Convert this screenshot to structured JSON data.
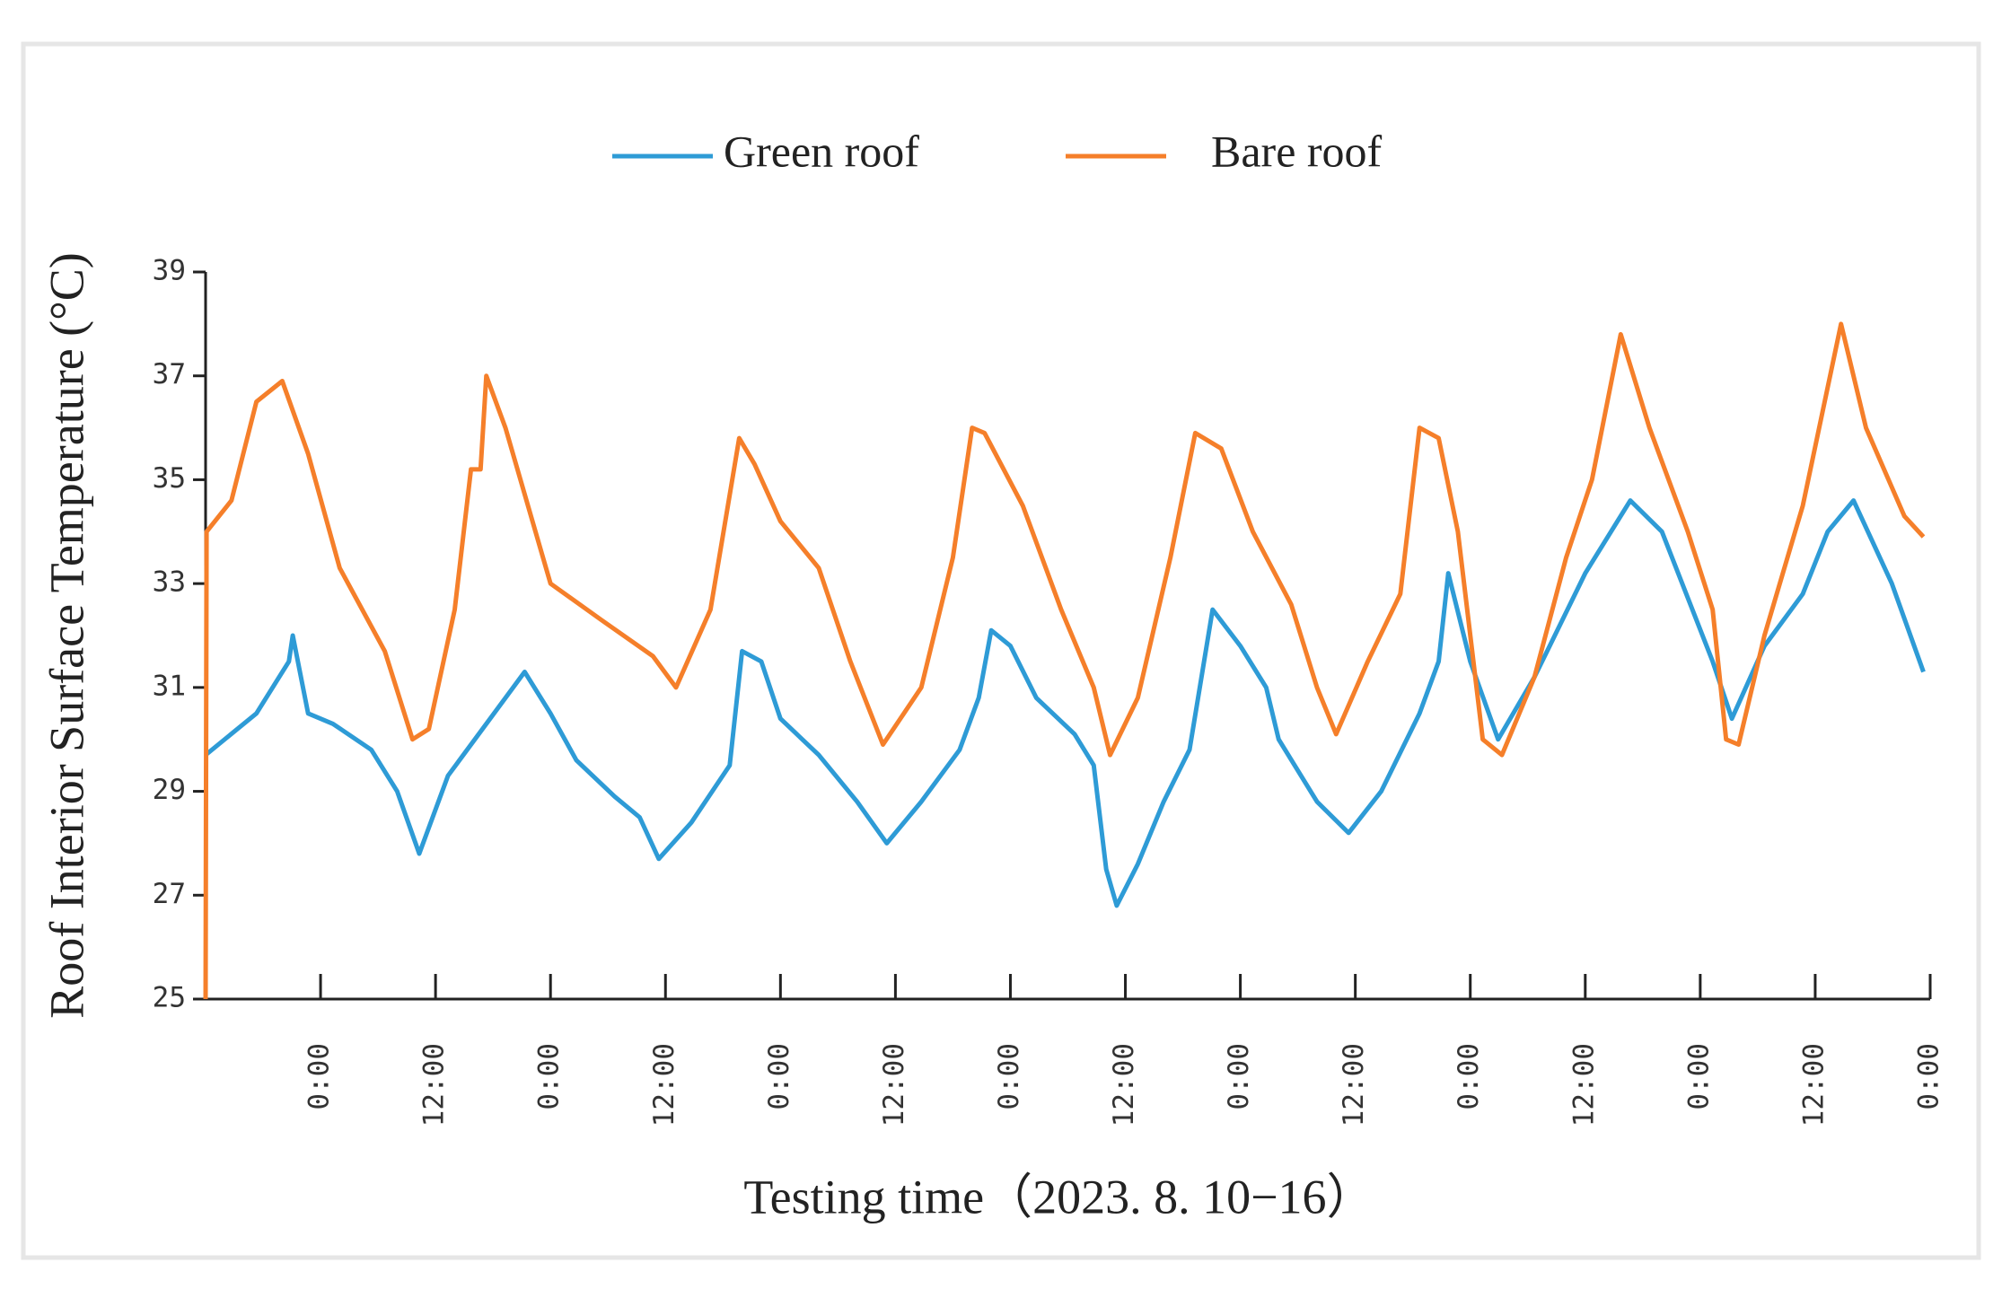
{
  "chart_data": {
    "type": "line",
    "xlabel": "Testing time（2023. 8. 10−16）",
    "ylabel": "Roof Interior Surface Temperature (°C)",
    "xlim": [
      0,
      180
    ],
    "xticks": [
      {
        "value": 12,
        "label": "0:00"
      },
      {
        "value": 24,
        "label": "12:00"
      },
      {
        "value": 36,
        "label": "0:00"
      },
      {
        "value": 48,
        "label": "12:00"
      },
      {
        "value": 60,
        "label": "0:00"
      },
      {
        "value": 72,
        "label": "12:00"
      },
      {
        "value": 84,
        "label": "0:00"
      },
      {
        "value": 96,
        "label": "12:00"
      },
      {
        "value": 108,
        "label": "0:00"
      },
      {
        "value": 120,
        "label": "12:00"
      },
      {
        "value": 132,
        "label": "0:00"
      },
      {
        "value": 144,
        "label": "12:00"
      },
      {
        "value": 156,
        "label": "0:00"
      },
      {
        "value": 168,
        "label": "12:00"
      },
      {
        "value": 180,
        "label": "0:00"
      }
    ],
    "ylim": [
      25,
      39
    ],
    "yticks": [
      25,
      27,
      29,
      31,
      33,
      35,
      37,
      39
    ],
    "legend": "top",
    "series": [
      {
        "name": "Green roof",
        "color": "#2e9bd6",
        "x": [
          0,
          5.3,
          8.7,
          9.1,
          10.7,
          13.3,
          17.3,
          20,
          22.3,
          25.3,
          29.3,
          33.3,
          36,
          38.7,
          42.7,
          45.3,
          47.3,
          50.7,
          54.7,
          56,
          58,
          60,
          64,
          68,
          71.1,
          74.7,
          78.7,
          80.7,
          82,
          84,
          86.7,
          90.7,
          92.7,
          94,
          95.1,
          97.3,
          100,
          102.7,
          105.1,
          108,
          110.7,
          112,
          116,
          119.3,
          122.7,
          126.7,
          128.7,
          129.7,
          132,
          134.9,
          138.7,
          144,
          148.7,
          152,
          157.3,
          159.3,
          162.7,
          166.7,
          169.3,
          172,
          176,
          179.3
        ],
        "values": [
          29.7,
          30.5,
          31.5,
          32.0,
          30.5,
          30.3,
          29.8,
          29.0,
          27.8,
          29.3,
          30.3,
          31.3,
          30.5,
          29.6,
          28.9,
          28.5,
          27.7,
          28.4,
          29.5,
          31.7,
          31.5,
          30.4,
          29.7,
          28.8,
          28.0,
          28.8,
          29.8,
          30.8,
          32.1,
          31.8,
          30.8,
          30.1,
          29.5,
          27.5,
          26.8,
          27.6,
          28.8,
          29.8,
          32.5,
          31.8,
          31.0,
          30.0,
          28.8,
          28.2,
          29.0,
          30.5,
          31.5,
          33.2,
          31.5,
          30.0,
          31.2,
          33.2,
          34.6,
          34.0,
          31.5,
          30.4,
          31.8,
          32.8,
          34.0,
          34.6,
          33.0,
          31.3
        ]
      },
      {
        "name": "Bare roof",
        "color": "#f57f2a",
        "x": [
          0,
          0.1,
          2.7,
          5.3,
          8,
          10.7,
          14,
          18.7,
          21.6,
          23.3,
          26,
          27.7,
          28.7,
          29.3,
          31.3,
          36,
          41.3,
          46.7,
          49.1,
          52.7,
          55.7,
          57.3,
          60,
          64,
          67.3,
          70.7,
          74.7,
          78,
          80,
          81.3,
          85.3,
          89.3,
          92.7,
          94.4,
          97.3,
          100.7,
          103.3,
          106,
          109.3,
          113.3,
          116,
          118,
          121.3,
          124.7,
          126.7,
          128.7,
          130.7,
          133.3,
          135.3,
          138.7,
          142,
          144.7,
          147.7,
          150.7,
          154.7,
          157.3,
          158.7,
          160,
          162.7,
          166.7,
          170.7,
          173.3,
          177.3,
          179.3
        ],
        "values": [
          25.0,
          34.0,
          34.6,
          36.5,
          36.9,
          35.5,
          33.3,
          31.7,
          30.0,
          30.2,
          32.5,
          35.2,
          35.2,
          37.0,
          36.0,
          33.0,
          32.3,
          31.6,
          31.0,
          32.5,
          35.8,
          35.3,
          34.2,
          33.3,
          31.5,
          29.9,
          31.0,
          33.5,
          36.0,
          35.9,
          34.5,
          32.5,
          31.0,
          29.7,
          30.8,
          33.5,
          35.9,
          35.6,
          34.0,
          32.6,
          31.0,
          30.1,
          31.5,
          32.8,
          36.0,
          35.8,
          34.0,
          30.0,
          29.7,
          31.2,
          33.5,
          35.0,
          37.8,
          36.0,
          34.0,
          32.5,
          30.0,
          29.9,
          32.0,
          34.5,
          38.0,
          36.0,
          34.3,
          33.9
        ]
      }
    ]
  }
}
